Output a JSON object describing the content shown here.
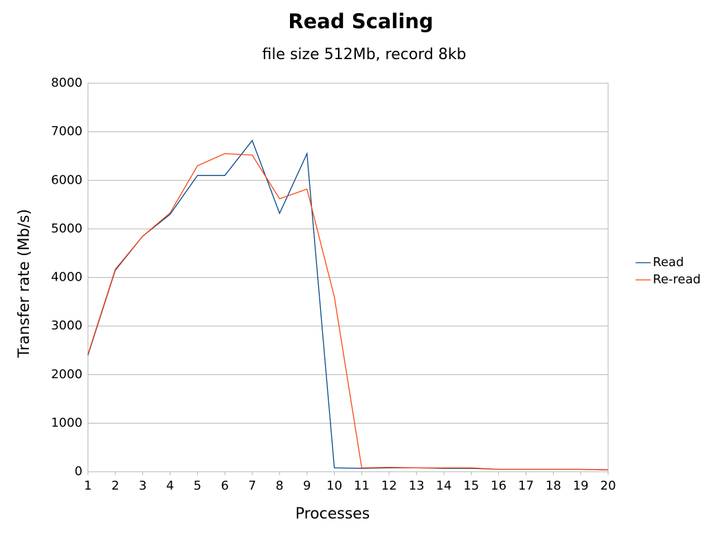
{
  "chart_data": {
    "type": "line",
    "title": "Read Scaling",
    "subtitle": "file size 512Mb, record 8kb",
    "x_label": "Processes",
    "y_label": "Transfer rate (Mb/s)",
    "x": [
      1,
      2,
      3,
      4,
      5,
      6,
      7,
      8,
      9,
      10,
      11,
      12,
      13,
      14,
      15,
      16,
      17,
      18,
      19,
      20
    ],
    "series": [
      {
        "name": "Read",
        "color": "#004586",
        "values": [
          2400,
          4150,
          4850,
          5300,
          6100,
          6100,
          6820,
          5320,
          6550,
          80,
          70,
          80,
          80,
          70,
          70,
          50,
          50,
          50,
          50,
          40
        ]
      },
      {
        "name": "Re-read",
        "color": "#ff420e",
        "values": [
          2420,
          4170,
          4850,
          5330,
          6300,
          6550,
          6520,
          5620,
          5820,
          3600,
          80,
          90,
          80,
          80,
          80,
          50,
          50,
          50,
          50,
          40
        ]
      }
    ],
    "xlim": [
      1,
      20
    ],
    "xticks": [
      1,
      2,
      3,
      4,
      5,
      6,
      7,
      8,
      9,
      10,
      11,
      12,
      13,
      14,
      15,
      16,
      17,
      18,
      19,
      20
    ],
    "ylim": [
      0,
      8000
    ],
    "yticks": [
      0,
      1000,
      2000,
      3000,
      4000,
      5000,
      6000,
      7000,
      8000
    ],
    "grid": true,
    "legend": "right"
  }
}
